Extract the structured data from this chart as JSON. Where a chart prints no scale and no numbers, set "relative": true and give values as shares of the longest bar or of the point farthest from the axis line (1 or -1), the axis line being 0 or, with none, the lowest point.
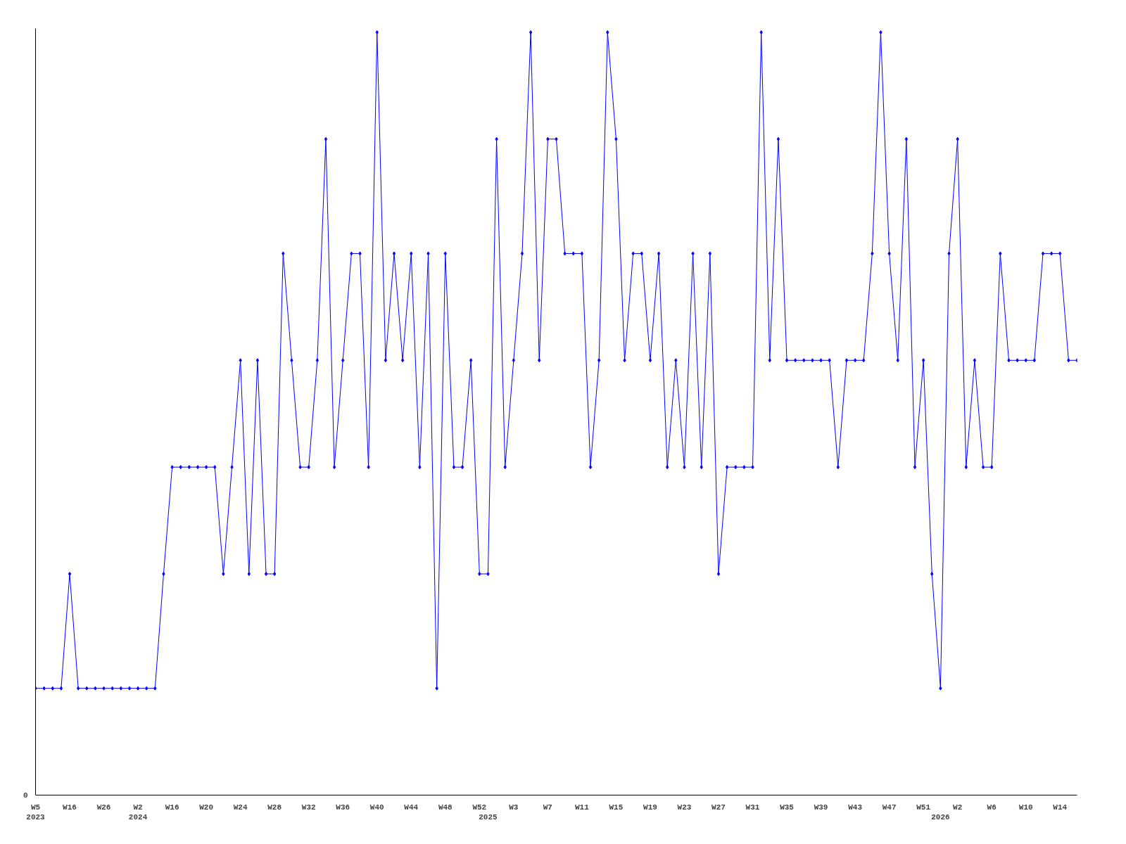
{
  "chart_data": {
    "type": "line",
    "relative": true,
    "marker": "diamond",
    "grid": false,
    "annotations": [
      "0"
    ],
    "categories": [
      "W5\n2023",
      null,
      null,
      null,
      "W16",
      null,
      null,
      null,
      "W26",
      null,
      null,
      null,
      "W2\n2024",
      null,
      null,
      null,
      "W16",
      null,
      null,
      null,
      "W20",
      null,
      null,
      null,
      "W24",
      null,
      null,
      null,
      "W28",
      null,
      null,
      null,
      "W32",
      null,
      null,
      null,
      "W36",
      null,
      null,
      null,
      "W40",
      null,
      null,
      null,
      "W44",
      null,
      null,
      null,
      "W48",
      null,
      null,
      null,
      "W52",
      "\n2025",
      null,
      null,
      "W3",
      null,
      null,
      null,
      "W7",
      null,
      null,
      null,
      "W11",
      null,
      null,
      null,
      "W15",
      null,
      null,
      null,
      "W19",
      null,
      null,
      null,
      "W23",
      null,
      null,
      null,
      "W27",
      null,
      null,
      null,
      "W31",
      null,
      null,
      null,
      "W35",
      null,
      null,
      null,
      "W39",
      null,
      null,
      null,
      "W43",
      null,
      null,
      null,
      "W47",
      null,
      null,
      null,
      "W51",
      null,
      "\n2026",
      null,
      "W2",
      null,
      null,
      null,
      "W6",
      null,
      null,
      null,
      "W10",
      null,
      null,
      null,
      "W14",
      null,
      null
    ],
    "series": [
      {
        "color": "#0000ff",
        "values": [
          0.14,
          0.14,
          0.14,
          0.14,
          0.29,
          0.14,
          0.14,
          0.14,
          0.14,
          0.14,
          0.14,
          0.14,
          0.14,
          0.14,
          0.14,
          0.29,
          0.43,
          0.43,
          0.43,
          0.43,
          0.43,
          0.43,
          0.29,
          0.43,
          0.57,
          0.29,
          0.57,
          0.29,
          0.29,
          0.71,
          0.57,
          0.43,
          0.43,
          0.57,
          0.86,
          0.43,
          0.57,
          0.71,
          0.71,
          0.43,
          1,
          0.57,
          0.71,
          0.57,
          0.71,
          0.43,
          0.71,
          0.14,
          0.71,
          0.43,
          0.43,
          0.57,
          0.29,
          0.29,
          0.86,
          0.43,
          0.57,
          0.71,
          1,
          0.57,
          0.86,
          0.86,
          0.71,
          0.71,
          0.71,
          0.43,
          0.57,
          1,
          0.86,
          0.57,
          0.71,
          0.71,
          0.57,
          0.71,
          0.43,
          0.57,
          0.43,
          0.71,
          0.43,
          0.71,
          0.29,
          0.43,
          0.43,
          0.43,
          0.43,
          1,
          0.57,
          0.86,
          0.57,
          0.57,
          0.57,
          0.57,
          0.57,
          0.57,
          0.43,
          0.57,
          0.57,
          0.57,
          0.71,
          1,
          0.71,
          0.57,
          0.86,
          0.43,
          0.57,
          0.29,
          0.14,
          0.71,
          0.86,
          0.43,
          0.57,
          0.43,
          0.43,
          0.71,
          0.57,
          0.57,
          0.57,
          0.57,
          0.71,
          0.71,
          0.71,
          0.57,
          0.57
        ]
      }
    ]
  }
}
